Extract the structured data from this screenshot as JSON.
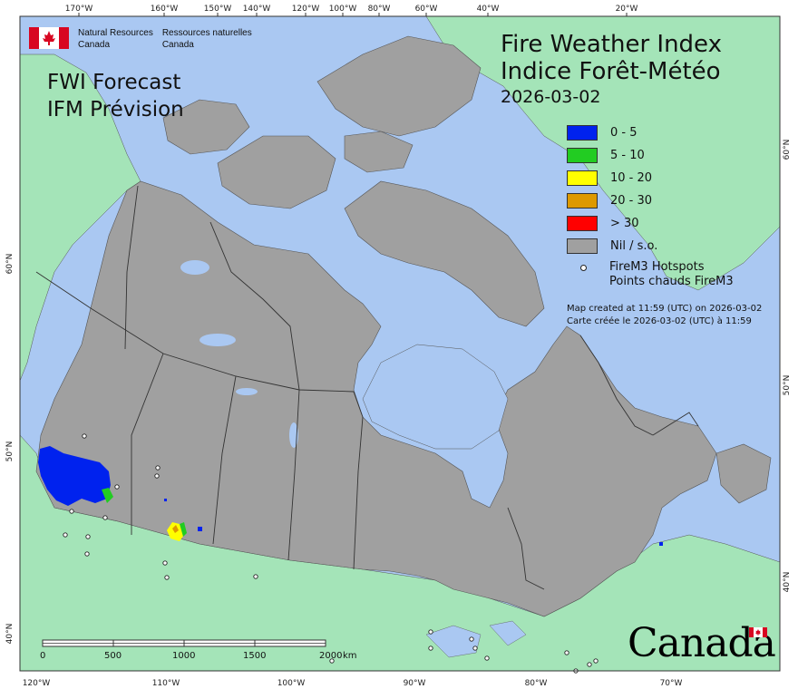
{
  "org": {
    "en_line1": "Natural Resources",
    "en_line2": "Canada",
    "fr_line1": "Ressources naturelles",
    "fr_line2": "Canada",
    "flag": "canada-flag-icon"
  },
  "product": {
    "en": "FWI Forecast",
    "fr": "IFM Prévision"
  },
  "title": {
    "en": "Fire Weather Index",
    "fr": "Indice Forêt-Météo"
  },
  "date": "2026-03-02",
  "legend": [
    {
      "label": "0 - 5",
      "color": "#0022ee"
    },
    {
      "label": "5 - 10",
      "color": "#22cc22"
    },
    {
      "label": "10 - 20",
      "color": "#ffff00"
    },
    {
      "label": "20 - 30",
      "color": "#dd9900"
    },
    {
      "label": "> 30",
      "color": "#ff0000"
    },
    {
      "label": "Nil / s.o.",
      "color": "#a0a0a0"
    }
  ],
  "hotspots_legend": {
    "line1": "FireM3 Hotspots",
    "line2": "Points chauds FireM3"
  },
  "created": {
    "en": "Map created at 11:59 (UTC) on 2026-03-02",
    "fr": "Carte créée le 2026-03-02 (UTC) à 11:59"
  },
  "top_ticks": [
    "170°W",
    "160°W",
    "150°W",
    "140°W",
    "120°W",
    "100°W",
    "80°W",
    "60°W",
    "40°W",
    "20°W"
  ],
  "bottom_ticks": [
    "120°W",
    "110°W",
    "100°W",
    "90°W",
    "80°W",
    "70°W"
  ],
  "left_ticks": [
    "60°N",
    "50°N",
    "40°N"
  ],
  "right_ticks": [
    "60°N",
    "50°N",
    "40°N"
  ],
  "scale": {
    "labels": [
      "0",
      "500",
      "1000",
      "1500",
      "2000"
    ],
    "unit": "km"
  },
  "wordmark": "Canada",
  "colors": {
    "ocean": "#aac8f2",
    "land_other": "#a4e4b8",
    "canada": "#a0a0a0"
  }
}
